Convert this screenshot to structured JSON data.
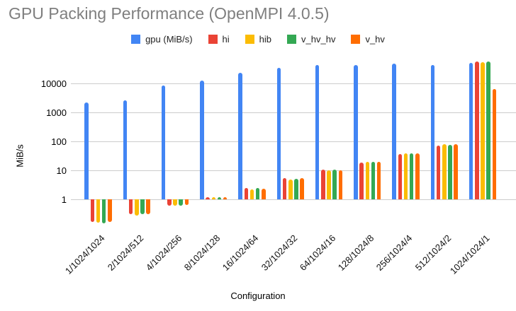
{
  "title": "GPU Packing Performance (OpenMPI 4.0.5)",
  "chart_data": {
    "type": "bar",
    "title": "GPU Packing Performance (OpenMPI 4.0.5)",
    "xlabel": "Configuration",
    "ylabel": "MiB/s",
    "yscale": "log",
    "y_ticks": [
      1,
      10,
      100,
      1000,
      10000
    ],
    "ylim": [
      0.1,
      60000
    ],
    "grid": true,
    "legend_position": "top",
    "categories": [
      "1/1024/1024",
      "2/1024/512",
      "4/1024/256",
      "8/1024/128",
      "16/1024/64",
      "32/1024/32",
      "64/1024/16",
      "128/1024/8",
      "256/1024/4",
      "512/1024/2",
      "1024/1024/1"
    ],
    "series": [
      {
        "name": "gpu (MiB/s)",
        "color": "#4285F4",
        "values": [
          2150,
          2550,
          8500,
          12500,
          23000,
          34000,
          42000,
          44000,
          48000,
          44000,
          52000
        ]
      },
      {
        "name": "hi",
        "color": "#EA4335",
        "values": [
          0.17,
          0.31,
          0.6,
          1.15,
          2.4,
          5.5,
          10.5,
          19.0,
          37.0,
          73.0,
          56000
        ]
      },
      {
        "name": "hib",
        "color": "#FBBC04",
        "values": [
          0.155,
          0.28,
          0.62,
          1.2,
          2.25,
          4.9,
          10.0,
          19.5,
          38.5,
          80.0,
          53000
        ]
      },
      {
        "name": "v_hv_hv",
        "color": "#34A853",
        "values": [
          0.15,
          0.3,
          0.62,
          1.15,
          2.4,
          5.0,
          10.5,
          19.5,
          38.5,
          76.0,
          56000
        ]
      },
      {
        "name": "v_hv",
        "color": "#FF6D01",
        "values": [
          0.17,
          0.3,
          0.65,
          1.2,
          2.35,
          5.4,
          10.0,
          19.5,
          38.0,
          79.0,
          6500
        ]
      }
    ]
  }
}
